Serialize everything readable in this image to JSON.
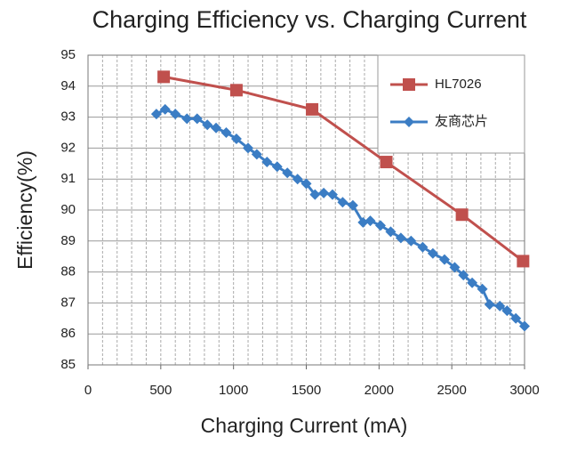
{
  "chart_data": {
    "type": "line",
    "title": "Charging Efficiency vs. Charging Current",
    "x_label": "Charging Current (mA)",
    "y_label": "Efficiency(%)",
    "xlim": [
      0,
      3000
    ],
    "xticks": [
      0,
      500,
      1000,
      1500,
      2000,
      2500,
      3000
    ],
    "xgrid": [
      100,
      200,
      300,
      400,
      500,
      600,
      700,
      800,
      900,
      1000,
      1100,
      1200,
      1300,
      1400,
      1500,
      1600,
      1700,
      1800,
      1900,
      2000,
      2100,
      2200,
      2300,
      2400,
      2500,
      2600,
      2700,
      2800,
      2900
    ],
    "ylim": [
      85,
      95
    ],
    "yticks": [
      85,
      86,
      87,
      88,
      89,
      90,
      91,
      92,
      93,
      94,
      95
    ],
    "grid": true,
    "legend": "upper right",
    "series": [
      {
        "name": "HL7026",
        "color": "#c0504d",
        "marker": "square",
        "x": [
          520,
          1020,
          1540,
          2050,
          2570,
          2990
        ],
        "values": [
          94.3,
          93.87,
          93.25,
          91.55,
          89.85,
          88.35
        ]
      },
      {
        "name": "友商芯片",
        "color": "#3b7dc4",
        "marker": "diamond",
        "x": [
          470,
          530,
          600,
          680,
          750,
          820,
          880,
          950,
          1020,
          1100,
          1160,
          1230,
          1300,
          1370,
          1440,
          1500,
          1560,
          1620,
          1680,
          1750,
          1820,
          1890,
          1940,
          2010,
          2080,
          2150,
          2220,
          2300,
          2370,
          2450,
          2520,
          2580,
          2640,
          2710,
          2760,
          2830,
          2880,
          2940,
          3000
        ],
        "values": [
          93.1,
          93.25,
          93.1,
          92.95,
          92.95,
          92.75,
          92.65,
          92.5,
          92.3,
          92.0,
          91.8,
          91.55,
          91.4,
          91.2,
          91.0,
          90.85,
          90.5,
          90.55,
          90.5,
          90.25,
          90.15,
          89.6,
          89.65,
          89.5,
          89.3,
          89.1,
          89.0,
          88.8,
          88.6,
          88.4,
          88.15,
          87.9,
          87.65,
          87.45,
          86.95,
          86.9,
          86.75,
          86.5,
          86.25
        ]
      }
    ]
  }
}
